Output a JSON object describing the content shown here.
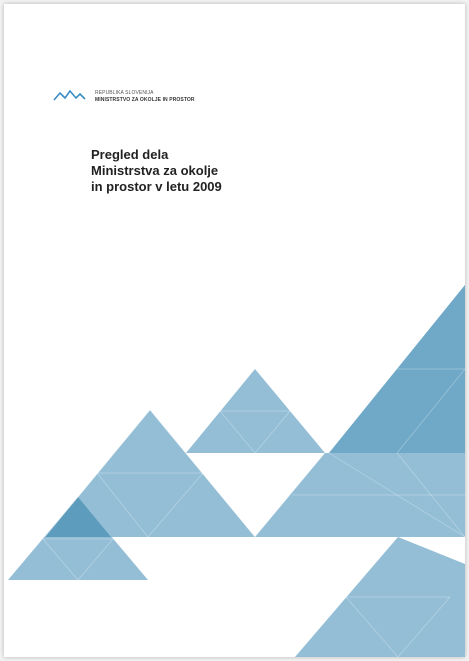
{
  "header": {
    "line1": "REPUBLIKA SLOVENIJA",
    "line2": "MINISTRSTVO ZA OKOLJE IN PROSTOR"
  },
  "title": {
    "lines": [
      "Pregled dela",
      "Ministrstva za okolje",
      "in prostor v letu 2009"
    ]
  }
}
